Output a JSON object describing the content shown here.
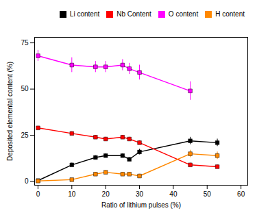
{
  "chart_data": {
    "type": "line",
    "xlabel": "Ratio of lithium pulses (%)",
    "ylabel": "Deposited elemental content (%)",
    "xlim": [
      -1,
      62
    ],
    "ylim": [
      -2,
      78
    ],
    "xticks": [
      0,
      10,
      20,
      30,
      40,
      50,
      60
    ],
    "yticks": [
      0,
      25,
      50,
      75
    ],
    "grid": false,
    "legend": "upper right",
    "series": [
      {
        "name": "Li content",
        "color": "#000000",
        "marker": "square",
        "x": [
          0,
          10,
          17,
          20,
          25,
          27,
          30,
          45,
          53
        ],
        "values": [
          0.5,
          9,
          13,
          14,
          14,
          12,
          16,
          22,
          21
        ],
        "yerr": [
          0.5,
          1,
          1,
          1,
          1,
          1,
          1.5,
          2,
          2
        ]
      },
      {
        "name": "Nb Content",
        "color": "#ff0000",
        "marker": "square",
        "x": [
          0,
          10,
          17,
          20,
          25,
          27,
          30,
          45,
          53
        ],
        "values": [
          29,
          26,
          24,
          23,
          24,
          23,
          21,
          9,
          8
        ],
        "yerr": [
          1,
          1,
          1,
          1,
          1,
          1,
          1,
          1,
          1
        ]
      },
      {
        "name": "O content",
        "color": "#ff00ff",
        "marker": "square",
        "x": [
          0,
          10,
          17,
          20,
          25,
          27,
          30,
          45
        ],
        "values": [
          68,
          63,
          62,
          62,
          63,
          61,
          59,
          49
        ],
        "yerr": [
          3,
          4,
          3,
          3,
          3,
          3,
          4,
          5
        ]
      },
      {
        "name": "H content",
        "color": "#ff8800",
        "marker": "square",
        "x": [
          0,
          10,
          17,
          20,
          25,
          27,
          30,
          45,
          53
        ],
        "values": [
          0.3,
          1,
          4,
          5,
          4,
          4,
          3,
          15,
          14
        ],
        "yerr": [
          0.3,
          0.5,
          1,
          1,
          1,
          1,
          1,
          2,
          2
        ]
      }
    ]
  }
}
